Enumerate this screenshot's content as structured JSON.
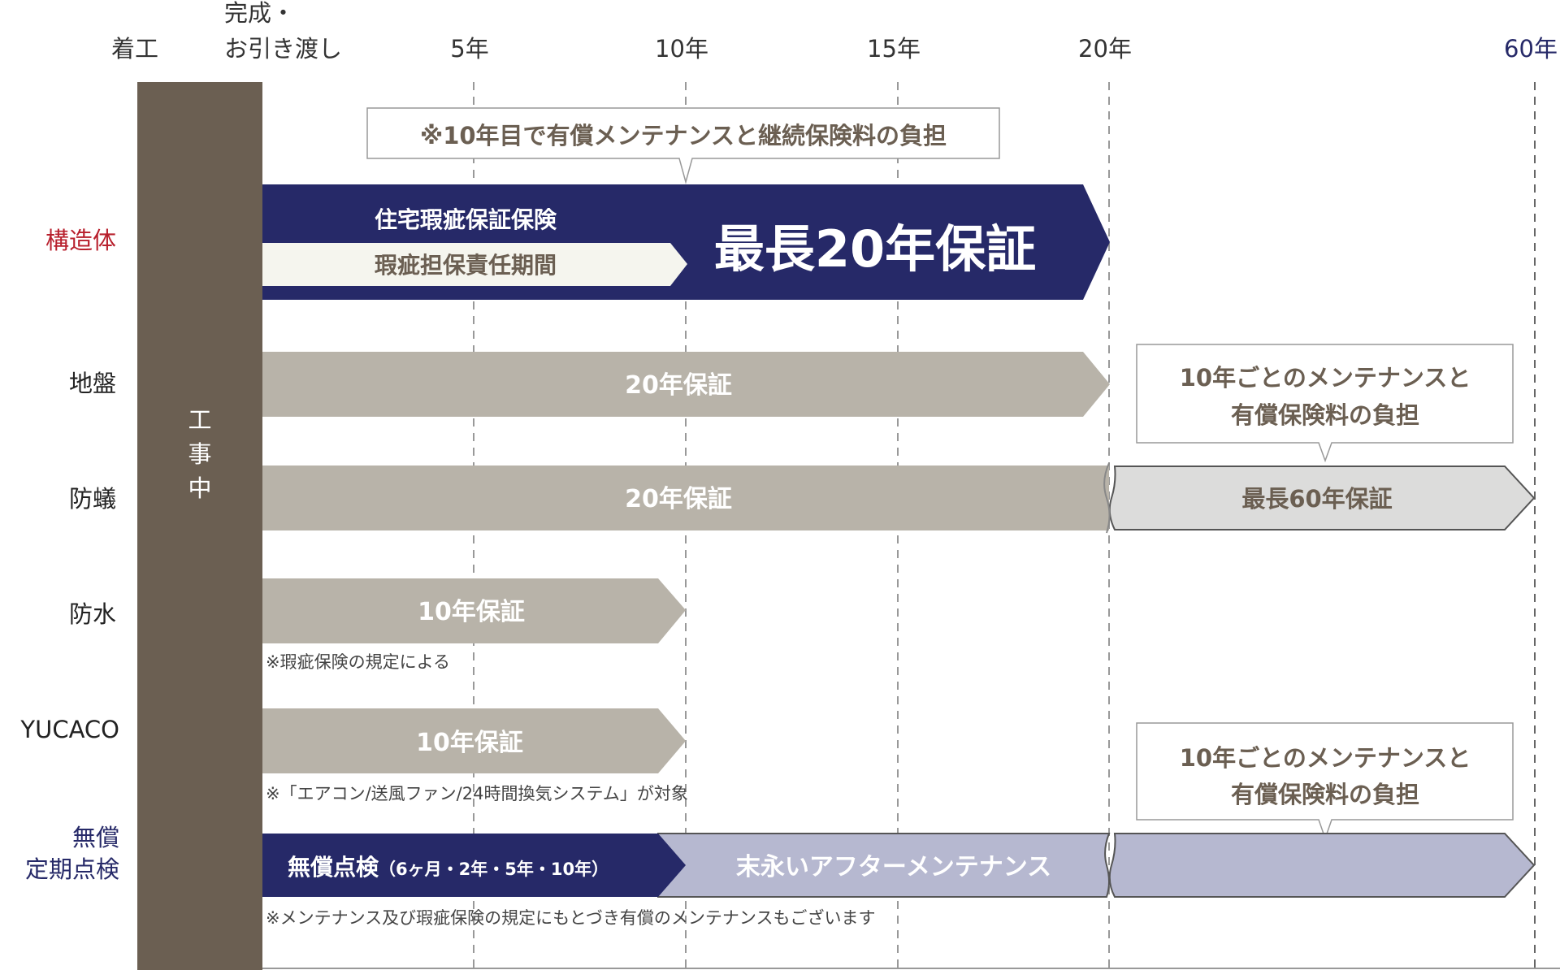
{
  "header": {
    "start": "着工",
    "completion_line1": "完成・",
    "completion_line2": "お引き渡し",
    "y5": "5年",
    "y10": "10年",
    "y15": "15年",
    "y20": "20年",
    "y60": "60年"
  },
  "construction_label": [
    "工",
    "事",
    "中"
  ],
  "rows": {
    "structure": {
      "label": "構造体",
      "callout": "※10年目で有償メンテナンスと継続保険料の負担",
      "insurance": "住宅瑕疵保証保険",
      "liability": "瑕疵担保責任期間",
      "main": "最長20年保証"
    },
    "ground": {
      "label": "地盤",
      "bar": "20年保証"
    },
    "termite": {
      "label": "防蟻",
      "bar": "20年保証",
      "extended": "最長60年保証",
      "callout_line1": "10年ごとのメンテナンスと",
      "callout_line2": "有償保険料の負担"
    },
    "waterproof": {
      "label": "防水",
      "bar": "10年保証",
      "note": "※瑕疵保険の規定による"
    },
    "yucaco": {
      "label": "YUCACO",
      "bar": "10年保証",
      "note": "※「エアコン/送風ファン/24時間換気システム」が対象"
    },
    "inspection": {
      "label_line1": "無償",
      "label_line2": "定期点検",
      "free": "無償点検",
      "free_detail": "（6ヶ月・2年・5年・10年）",
      "after": "末永いアフターメンテナンス",
      "callout_line1": "10年ごとのメンテナンスと",
      "callout_line2": "有償保険料の負担",
      "note": "※メンテナンス及び瑕疵保険の規定にもとづき有償のメンテナンスもございます"
    }
  },
  "colors": {
    "construction": "#6b5f52",
    "navy": "#262968",
    "gray_bar": "#b8b3a9",
    "light_gray": "#dcdcdb",
    "lavender": "#b6b8d0",
    "cream": "#f5f5ee",
    "red_label": "#b8202d",
    "navy_label": "#262968"
  }
}
